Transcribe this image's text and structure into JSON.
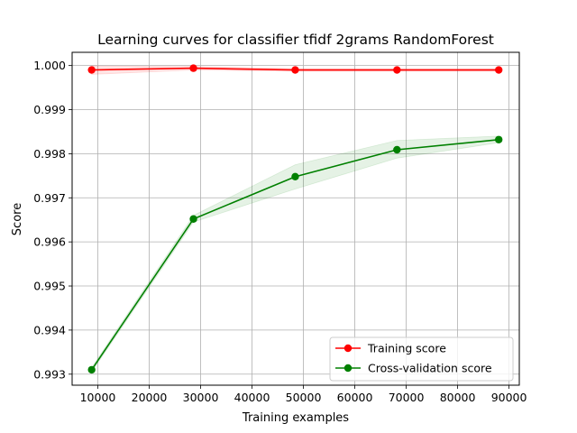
{
  "chart_data": {
    "type": "line",
    "title": "Learning curves for classifier tfidf 2grams RandomForest",
    "xlabel": "Training examples",
    "ylabel": "Score",
    "xlim": [
      5000,
      92000
    ],
    "ylim": [
      0.99275,
      1.0003
    ],
    "xticks": [
      10000,
      20000,
      30000,
      40000,
      50000,
      60000,
      70000,
      80000,
      90000
    ],
    "yticks": [
      0.993,
      0.994,
      0.995,
      0.996,
      0.997,
      0.998,
      0.999,
      1.0
    ],
    "ytick_labels": [
      "0.993",
      "0.994",
      "0.995",
      "0.996",
      "0.997",
      "0.998",
      "0.999",
      "1.000"
    ],
    "grid": true,
    "legend_position": "lower-right",
    "x": [
      8800,
      28600,
      48400,
      68200,
      88000
    ],
    "series": [
      {
        "name": "Training score",
        "color": "#ff0000",
        "values": [
          0.9999,
          0.99994,
          0.9999,
          0.9999,
          0.9999
        ],
        "band_lower": [
          0.9998,
          0.9999,
          0.99987,
          0.99987,
          0.99987
        ],
        "band_upper": [
          0.99999,
          0.99998,
          0.99993,
          0.99993,
          0.99993
        ]
      },
      {
        "name": "Cross-validation score",
        "color": "#008000",
        "values": [
          0.9931,
          0.99652,
          0.99748,
          0.99809,
          0.99832
        ],
        "band_lower": [
          0.99305,
          0.99645,
          0.9972,
          0.9979,
          0.99825
        ],
        "band_upper": [
          0.99315,
          0.9966,
          0.99775,
          0.9983,
          0.9984
        ]
      }
    ]
  }
}
